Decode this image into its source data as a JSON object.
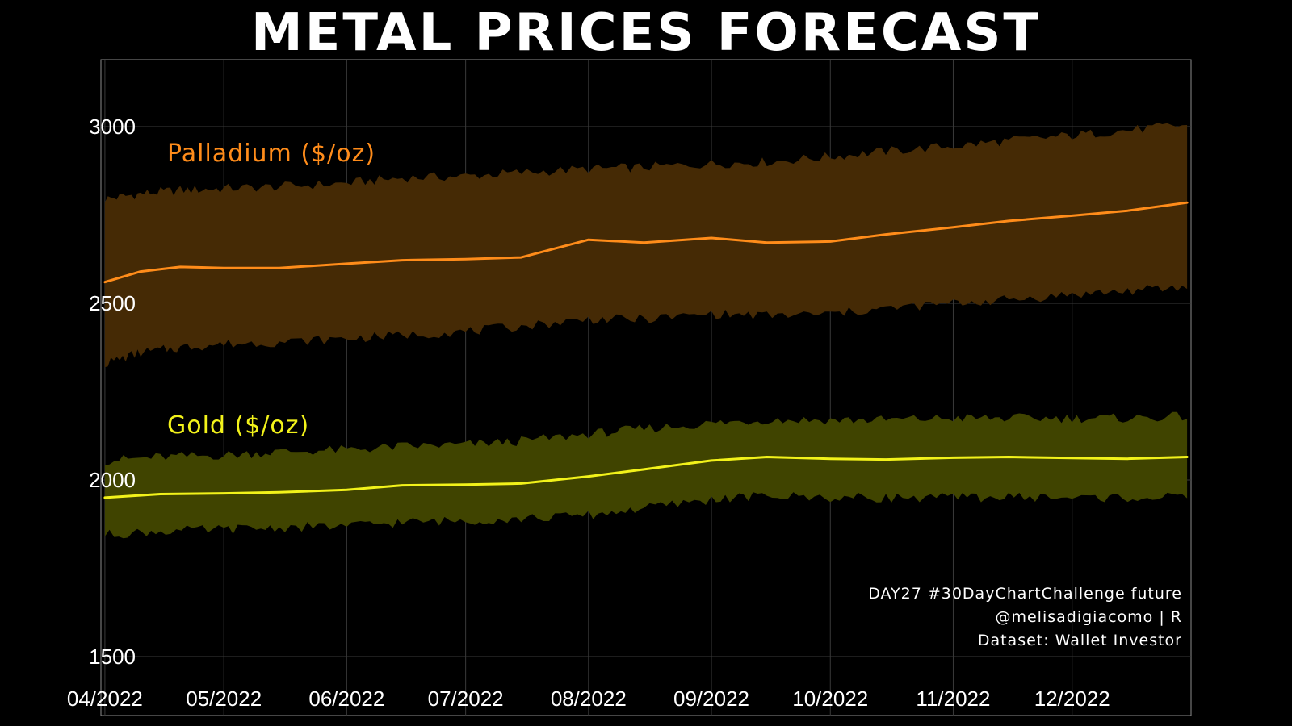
{
  "title": "METAL PRICES FORECAST",
  "caption": [
    "DAY27 #30DayChartChallenge future",
    "@melisadigiacomo | R",
    "Dataset: Wallet Investor"
  ],
  "colors": {
    "background": "#000000",
    "palladium_line": "#ff8c1a",
    "palladium_band": "#452a05",
    "gold_line": "#f2f21a",
    "gold_band": "#404400",
    "grid": "#3a3a3a",
    "panel_border": "#8c8c8c"
  },
  "chart_data": {
    "type": "line",
    "title": "METAL PRICES FORECAST",
    "xlabel": "",
    "ylabel": "",
    "xlim": [
      "2022-03-31",
      "2022-12-31"
    ],
    "ylim": [
      1500,
      3000
    ],
    "y_ticks": [
      1500,
      2000,
      2500,
      3000
    ],
    "x_ticks": [
      {
        "date": "2022-04-01",
        "label": "04/2022"
      },
      {
        "date": "2022-05-01",
        "label": "05/2022"
      },
      {
        "date": "2022-06-01",
        "label": "06/2022"
      },
      {
        "date": "2022-07-01",
        "label": "07/2022"
      },
      {
        "date": "2022-08-01",
        "label": "08/2022"
      },
      {
        "date": "2022-09-01",
        "label": "09/2022"
      },
      {
        "date": "2022-10-01",
        "label": "10/2022"
      },
      {
        "date": "2022-11-01",
        "label": "11/2022"
      },
      {
        "date": "2022-12-01",
        "label": "12/2022"
      }
    ],
    "grid": true,
    "legend": "none",
    "series": [
      {
        "name": "Palladium ($/oz)",
        "color": "#ff8c1a",
        "band_color": "#452a05",
        "x": [
          "2022-04-01",
          "2022-04-10",
          "2022-04-20",
          "2022-05-01",
          "2022-05-15",
          "2022-06-01",
          "2022-06-15",
          "2022-07-01",
          "2022-07-15",
          "2022-08-01",
          "2022-08-15",
          "2022-09-01",
          "2022-09-15",
          "2022-10-01",
          "2022-10-15",
          "2022-11-01",
          "2022-11-15",
          "2022-12-01",
          "2022-12-15",
          "2022-12-30"
        ],
        "values": [
          2560,
          2590,
          2603,
          2600,
          2600,
          2612,
          2622,
          2625,
          2630,
          2680,
          2672,
          2685,
          2672,
          2675,
          2695,
          2715,
          2733,
          2748,
          2762,
          2785
        ],
        "upper": [
          2795,
          2810,
          2820,
          2825,
          2830,
          2840,
          2855,
          2860,
          2870,
          2880,
          2885,
          2895,
          2900,
          2915,
          2930,
          2945,
          2960,
          2975,
          2990,
          3005
        ],
        "lower": [
          2330,
          2360,
          2375,
          2385,
          2390,
          2400,
          2410,
          2420,
          2435,
          2455,
          2455,
          2470,
          2465,
          2470,
          2485,
          2500,
          2510,
          2525,
          2535,
          2545
        ]
      },
      {
        "name": "Gold ($/oz)",
        "color": "#f2f21a",
        "band_color": "#404400",
        "x": [
          "2022-04-01",
          "2022-04-15",
          "2022-05-01",
          "2022-05-15",
          "2022-06-01",
          "2022-06-15",
          "2022-07-01",
          "2022-07-15",
          "2022-08-01",
          "2022-08-15",
          "2022-09-01",
          "2022-09-15",
          "2022-10-01",
          "2022-10-15",
          "2022-11-01",
          "2022-11-15",
          "2022-12-01",
          "2022-12-15",
          "2022-12-30"
        ],
        "values": [
          1950,
          1960,
          1962,
          1965,
          1972,
          1985,
          1987,
          1990,
          2010,
          2030,
          2055,
          2065,
          2060,
          2058,
          2063,
          2065,
          2062,
          2060,
          2065
        ],
        "upper": [
          2055,
          2065,
          2070,
          2080,
          2085,
          2095,
          2100,
          2110,
          2130,
          2145,
          2160,
          2170,
          2170,
          2170,
          2175,
          2175,
          2175,
          2175,
          2180
        ],
        "lower": [
          1845,
          1855,
          1860,
          1865,
          1870,
          1880,
          1885,
          1890,
          1900,
          1920,
          1945,
          1955,
          1950,
          1950,
          1950,
          1952,
          1950,
          1950,
          1950
        ]
      }
    ]
  }
}
